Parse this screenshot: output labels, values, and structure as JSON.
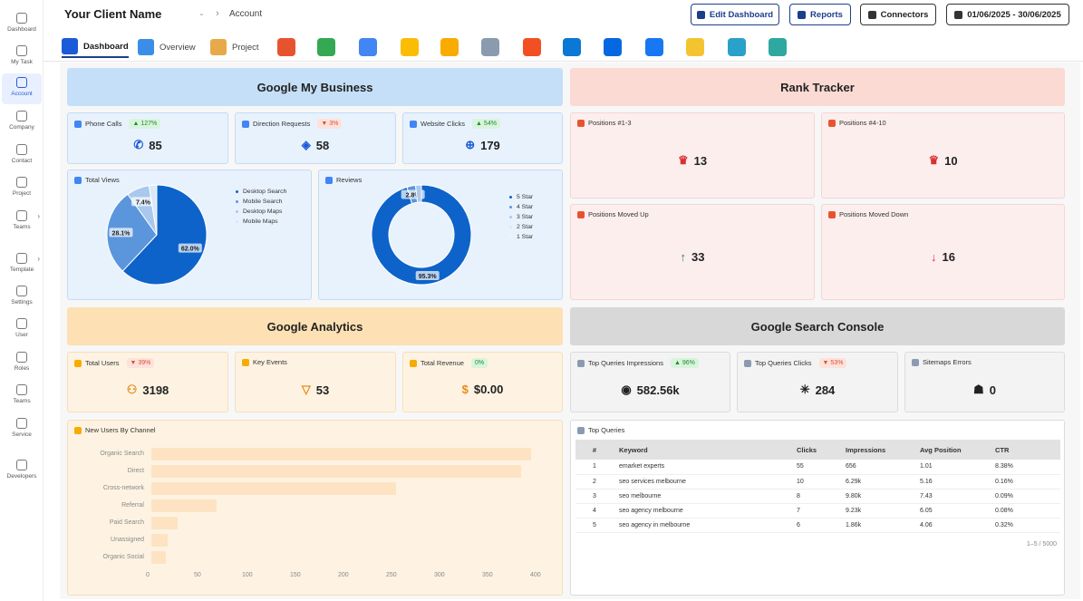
{
  "sidebar": {
    "items": [
      {
        "label": "Dashboard",
        "icon": "dashboard-icon"
      },
      {
        "label": "My Task",
        "icon": "task-icon"
      },
      {
        "label": "Account",
        "icon": "account-icon"
      },
      {
        "label": "Company",
        "icon": "company-icon"
      },
      {
        "label": "Contact",
        "icon": "contact-icon"
      },
      {
        "label": "Project",
        "icon": "project-icon"
      },
      {
        "label": "Teams",
        "icon": "teams-icon"
      },
      {
        "label": "Template",
        "icon": "template-icon"
      },
      {
        "label": "Settings",
        "icon": "settings-icon"
      },
      {
        "label": "User",
        "icon": "user-icon"
      },
      {
        "label": "Roles",
        "icon": "roles-icon"
      },
      {
        "label": "Teams",
        "icon": "teams-icon"
      },
      {
        "label": "Service",
        "icon": "service-icon"
      },
      {
        "label": "Developers",
        "icon": "developers-icon"
      }
    ]
  },
  "header": {
    "client": "Your Client Name",
    "breadcrumb": "Account",
    "edit_dashboard": "Edit Dashboard",
    "reports": "Reports",
    "connectors": "Connectors",
    "date_range": "01/06/2025 - 30/06/2025"
  },
  "tabs": {
    "dashboard": "Dashboard",
    "overview": "Overview",
    "project": "Project"
  },
  "colors": {
    "accent": "#1c3f8c",
    "gmb_head": "#c5dff8",
    "rank_head": "#fbdad3",
    "ga_head": "#fde0b4",
    "gsc_head": "#d8d8d8",
    "pie_dark": "#0d63c9",
    "pie_mid": "#5b96dc",
    "pie_light": "#a9c8ee"
  },
  "gmb": {
    "title": "Google My Business",
    "phone": {
      "label": "Phone Calls",
      "badge": "127%",
      "value": "85"
    },
    "direction": {
      "label": "Direction Requests",
      "badge": "3%",
      "value": "58"
    },
    "website": {
      "label": "Website Clicks",
      "badge": "54%",
      "value": "179"
    },
    "views": {
      "label": "Total Views"
    },
    "reviews": {
      "label": "Reviews"
    }
  },
  "rank": {
    "title": "Rank Tracker",
    "p13": {
      "label": "Positions #1-3",
      "value": "13"
    },
    "p410": {
      "label": "Positions #4-10",
      "value": "10"
    },
    "up": {
      "label": "Positions Moved Up",
      "value": "33"
    },
    "down": {
      "label": "Positions Moved Down",
      "value": "16"
    }
  },
  "ga": {
    "title": "Google Analytics",
    "users": {
      "label": "Total Users",
      "badge": "39%",
      "value": "3198"
    },
    "events": {
      "label": "Key Events",
      "value": "53"
    },
    "revenue": {
      "label": "Total Revenue",
      "badge": "0%",
      "value": "$0.00"
    },
    "channel": {
      "label": "New Users By Channel"
    }
  },
  "gsc": {
    "title": "Google Search Console",
    "impr": {
      "label": "Top Queries Impressions",
      "badge": "96%",
      "value": "582.56k"
    },
    "clicks": {
      "label": "Top Queries Clicks",
      "badge": "53%",
      "value": "284"
    },
    "sitemaps": {
      "label": "Sitemaps Errors",
      "value": "0"
    },
    "queries": {
      "label": "Top Queries",
      "columns": [
        "#",
        "Keyword",
        "Clicks",
        "Impressions",
        "Avg Position",
        "CTR"
      ],
      "rows": [
        [
          "1",
          "emarket experts",
          "55",
          "656",
          "1.01",
          "8.38%"
        ],
        [
          "2",
          "seo services melbourne",
          "10",
          "6.29k",
          "5.16",
          "0.16%"
        ],
        [
          "3",
          "seo melbourne",
          "8",
          "9.80k",
          "7.43",
          "0.09%"
        ],
        [
          "4",
          "seo agency melbourne",
          "7",
          "9.23k",
          "6.05",
          "0.08%"
        ],
        [
          "5",
          "seo agency in melbourne",
          "6",
          "1.86k",
          "4.06",
          "0.32%"
        ]
      ],
      "pagination": "1–5 / 5000"
    }
  },
  "chart_data": [
    {
      "type": "pie",
      "categories": [
        "Desktop Search",
        "Mobile Search",
        "Desktop Maps",
        "Mobile Maps"
      ],
      "values": [
        62.0,
        28.1,
        7.4,
        2.5
      ],
      "labels": [
        "62.0%",
        "28.1%",
        "7.4%",
        ""
      ],
      "legend": "right"
    },
    {
      "type": "pie",
      "donut": true,
      "categories": [
        "5 Star",
        "4 Star",
        "3 Star",
        "2 Star",
        "1 Star"
      ],
      "values": [
        95.3,
        2.8,
        1.9,
        0,
        0
      ],
      "labels": [
        "95.3%",
        "2.8%",
        "",
        "",
        ""
      ],
      "legend": "right"
    },
    {
      "type": "bar",
      "orientation": "horizontal",
      "categories": [
        "Organic Search",
        "Direct",
        "Cross-network",
        "Referral",
        "Paid Search",
        "Unassigned",
        "Organic Social"
      ],
      "values": [
        395,
        385,
        255,
        68,
        27,
        17,
        15
      ],
      "xticks": [
        "0",
        "50",
        "100",
        "150",
        "200",
        "250",
        "300",
        "350",
        "400"
      ],
      "xlim": [
        0,
        400
      ]
    }
  ]
}
